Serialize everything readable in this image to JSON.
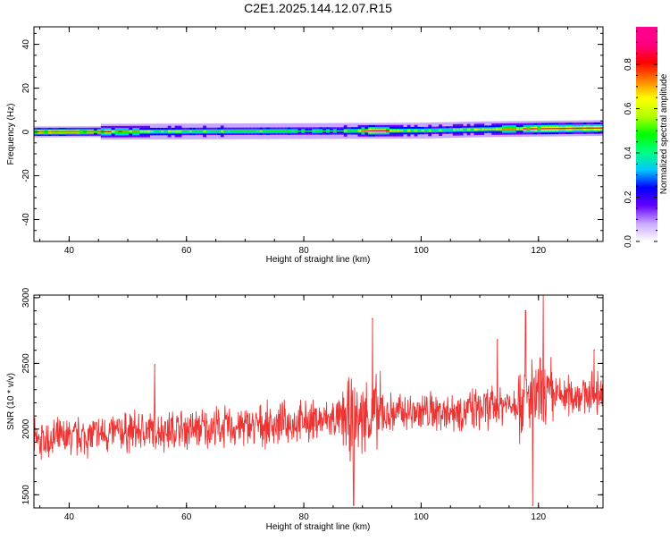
{
  "title": "C2E1.2025.144.12.07.R15",
  "chart_data": [
    {
      "type": "heatmap",
      "xlabel": "Height of straight line (km)",
      "ylabel": "Frequency (Hz)",
      "xlim": [
        34,
        131
      ],
      "ylim": [
        -50,
        48
      ],
      "xticks": [
        "40",
        "60",
        "80",
        "100",
        "120"
      ],
      "yticks": [
        "40",
        "20",
        "0",
        "-20",
        "-40"
      ],
      "colorbar": {
        "label": "Normalized spectral amplitude",
        "range": [
          0,
          0.97
        ],
        "ticks": [
          "0.0",
          "0.2",
          "0.4",
          "0.6",
          "0.8"
        ],
        "colors": [
          "#ffffff",
          "#c8a8ff",
          "#6600ff",
          "#0000ff",
          "#00c8ff",
          "#00ff80",
          "#00ff00",
          "#b4ff00",
          "#ffff00",
          "#ff8000",
          "#ff0000",
          "#ff0080",
          "#ff0090"
        ]
      },
      "band_center_hz": [
        {
          "x": 34,
          "y": 0.0
        },
        {
          "x": 80,
          "y": 0.4
        },
        {
          "x": 100,
          "y": 0.6
        },
        {
          "x": 110,
          "y": 1.2
        },
        {
          "x": 131,
          "y": 1.8
        }
      ],
      "peak_amplitude": [
        {
          "x": 34,
          "v": 0.9
        },
        {
          "x": 45,
          "v": 0.8
        },
        {
          "x": 55,
          "v": 0.55
        },
        {
          "x": 65,
          "v": 0.5
        },
        {
          "x": 80,
          "v": 0.45
        },
        {
          "x": 88,
          "v": 0.5
        },
        {
          "x": 91,
          "v": 0.85
        },
        {
          "x": 100,
          "v": 0.5
        },
        {
          "x": 110,
          "v": 0.55
        },
        {
          "x": 118,
          "v": 0.8
        },
        {
          "x": 121,
          "v": 0.9
        },
        {
          "x": 131,
          "v": 0.9
        }
      ]
    },
    {
      "type": "line",
      "xlabel": "Height of straight line (km)",
      "ylabel": "SNR (10 * v/v)",
      "xlim": [
        34,
        131
      ],
      "ylim": [
        1400,
        3020
      ],
      "xticks": [
        "40",
        "60",
        "80",
        "100",
        "120"
      ],
      "yticks": [
        "1500",
        "2000",
        "2500",
        "3000"
      ],
      "color": "#ee3333",
      "trend": [
        {
          "x": 34,
          "y": 1900
        },
        {
          "x": 50,
          "y": 1980
        },
        {
          "x": 70,
          "y": 2020
        },
        {
          "x": 88,
          "y": 2080
        },
        {
          "x": 95,
          "y": 2120
        },
        {
          "x": 110,
          "y": 2150
        },
        {
          "x": 118,
          "y": 2230
        },
        {
          "x": 131,
          "y": 2280
        }
      ],
      "spikes": [
        {
          "x": 54.6,
          "y": 2490
        },
        {
          "x": 88.5,
          "y": 1420
        },
        {
          "x": 91.7,
          "y": 2840
        },
        {
          "x": 113.0,
          "y": 2680
        },
        {
          "x": 117.8,
          "y": 2900
        },
        {
          "x": 119.0,
          "y": 1420
        },
        {
          "x": 120.8,
          "y": 3020
        },
        {
          "x": 129.5,
          "y": 2600
        }
      ]
    }
  ]
}
